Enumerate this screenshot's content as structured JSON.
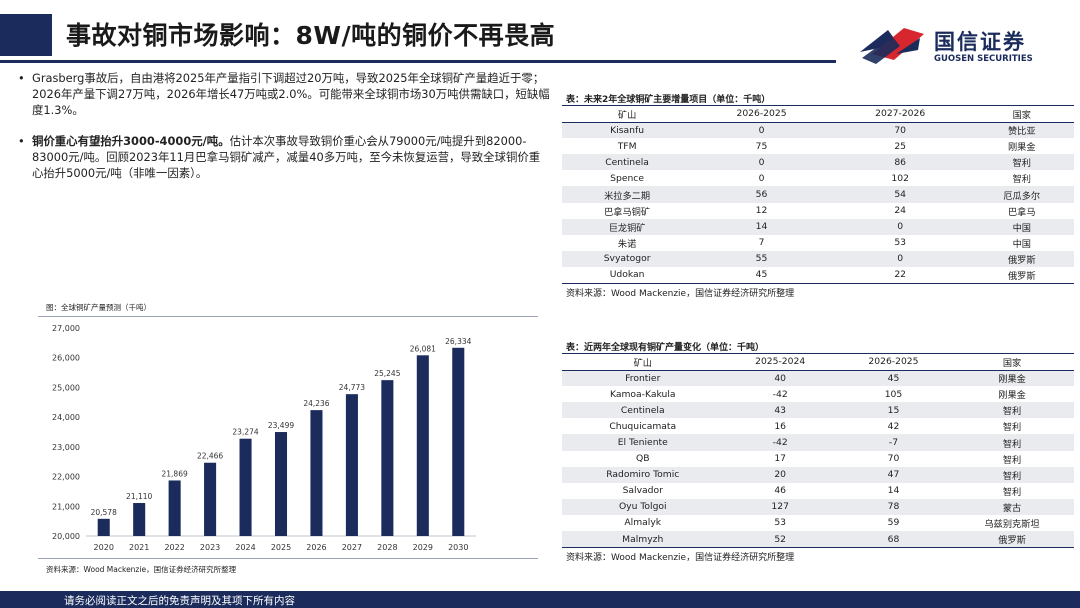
{
  "header": {
    "title": "事故对铜市场影响：8W/吨的铜价不再畏高",
    "logo_cn": "国信证券",
    "logo_en": "GUOSEN SECURITIES"
  },
  "bullets": [
    {
      "bold": "",
      "text": "Grasberg事故后，自由港将2025年产量指引下调超过20万吨，导致2025年全球铜矿产量趋近于零；2026年产量下调27万吨，2026年增长47万吨或2.0%。可能带来全球铜市场30万吨供需缺口，短缺幅度1.3%。"
    },
    {
      "bold": "铜价重心有望抬升3000-4000元/吨。",
      "text": "估计本次事故导致铜价重心会从79000元/吨提升到82000-83000元/吨。回顾2023年11月巴拿马铜矿减产，减量40多万吨，至今未恢复运营，导致全球铜价重心抬升5000元/吨（非唯一因素）。"
    }
  ],
  "chart": {
    "caption": "图：全球铜矿产量预测（千吨）",
    "source": "资料来源：Wood Mackenzie，国信证券经济研究所整理"
  },
  "chart_data": {
    "type": "bar",
    "categories": [
      "2020",
      "2021",
      "2022",
      "2023",
      "2024",
      "2025",
      "2026",
      "2027",
      "2028",
      "2029",
      "2030"
    ],
    "values": [
      20578,
      21110,
      21869,
      22466,
      23274,
      23499,
      24236,
      24773,
      25245,
      26081,
      26334
    ],
    "value_labels": [
      "20,578",
      "21,110",
      "21,869",
      "22,466",
      "23,274",
      "23,499",
      "24,236",
      "24,773",
      "25,245",
      "26,081",
      "26,334"
    ],
    "yticks": [
      "20,000",
      "21,000",
      "22,000",
      "23,000",
      "24,000",
      "25,000",
      "26,000",
      "27,000"
    ],
    "ylim": [
      20000,
      27000
    ],
    "title": "",
    "xlabel": "",
    "ylabel": "",
    "bar_color": "#1b2c5c"
  },
  "table1": {
    "caption": "表：未来2年全球铜矿主要增量项目（单位：千吨）",
    "headers": [
      "矿山",
      "2026-2025",
      "2027-2026",
      "国家"
    ],
    "rows": [
      [
        "Kisanfu",
        "0",
        "70",
        "赞比亚"
      ],
      [
        "TFM",
        "75",
        "25",
        "刚果金"
      ],
      [
        "Centinela",
        "0",
        "86",
        "智利"
      ],
      [
        "Spence",
        "0",
        "102",
        "智利"
      ],
      [
        "米拉多二期",
        "56",
        "54",
        "厄瓜多尔"
      ],
      [
        "巴拿马铜矿",
        "12",
        "24",
        "巴拿马"
      ],
      [
        "巨龙铜矿",
        "14",
        "0",
        "中国"
      ],
      [
        "朱诺",
        "7",
        "53",
        "中国"
      ],
      [
        "Svyatogor",
        "55",
        "0",
        "俄罗斯"
      ],
      [
        "Udokan",
        "45",
        "22",
        "俄罗斯"
      ]
    ],
    "source": "资料来源：Wood Mackenzie，国信证券经济研究所整理"
  },
  "table2": {
    "caption": "表：近两年全球现有铜矿产量变化（单位：千吨）",
    "headers": [
      "矿山",
      "2025-2024",
      "2026-2025",
      "国家"
    ],
    "rows": [
      [
        "Frontier",
        "40",
        "45",
        "刚果金"
      ],
      [
        "Kamoa-Kakula",
        "-42",
        "105",
        "刚果金"
      ],
      [
        "Centinela",
        "43",
        "15",
        "智利"
      ],
      [
        "Chuquicamata",
        "16",
        "42",
        "智利"
      ],
      [
        "El Teniente",
        "-42",
        "-7",
        "智利"
      ],
      [
        "QB",
        "17",
        "70",
        "智利"
      ],
      [
        "Radomiro Tomic",
        "20",
        "47",
        "智利"
      ],
      [
        "Salvador",
        "46",
        "14",
        "智利"
      ],
      [
        "Oyu Tolgoi",
        "127",
        "78",
        "蒙古"
      ],
      [
        "Almalyk",
        "53",
        "59",
        "乌兹别克斯坦"
      ],
      [
        "Malmyzh",
        "52",
        "68",
        "俄罗斯"
      ]
    ],
    "source": "资料来源：Wood Mackenzie，国信证券经济研究所整理"
  },
  "footer": {
    "text": "请务必阅读正文之后的免责声明及其项下所有内容"
  }
}
